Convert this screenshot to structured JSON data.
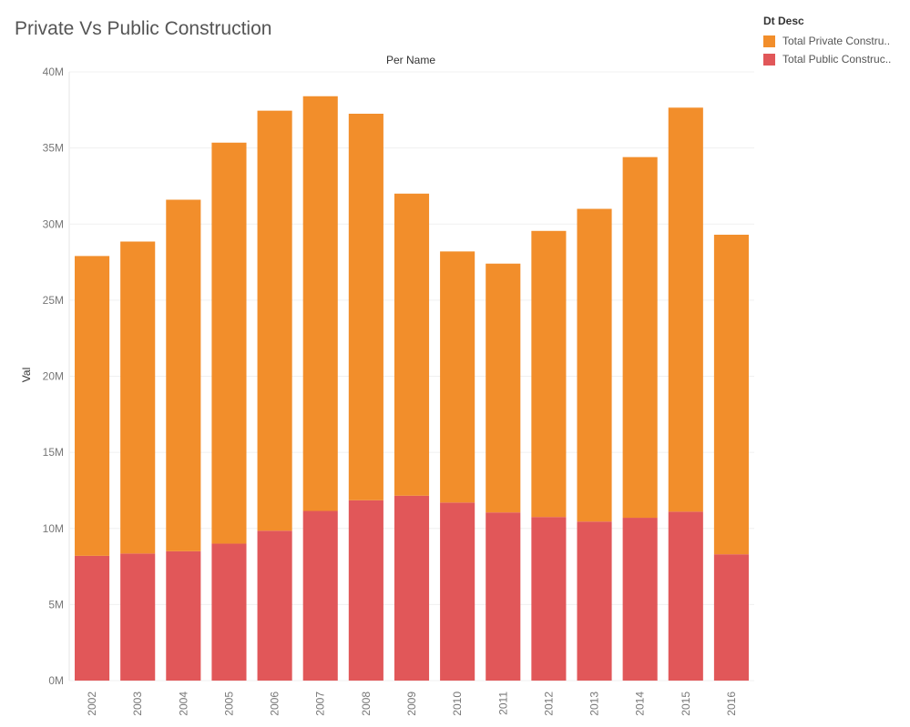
{
  "title": "Private Vs Public Construction",
  "legend": {
    "title": "Dt Desc",
    "items": [
      {
        "label": "Total Private Constru..",
        "color": "#F28E2B"
      },
      {
        "label": "Total Public Construc..",
        "color": "#E15759"
      }
    ]
  },
  "chart_data": {
    "type": "bar",
    "stacked": true,
    "column_header": "Per Name",
    "ylabel": "Val",
    "ylim": [
      0,
      40000000
    ],
    "yticks": [
      {
        "value": 0,
        "label": "0M"
      },
      {
        "value": 5000000,
        "label": "5M"
      },
      {
        "value": 10000000,
        "label": "10M"
      },
      {
        "value": 15000000,
        "label": "15M"
      },
      {
        "value": 20000000,
        "label": "20M"
      },
      {
        "value": 25000000,
        "label": "25M"
      },
      {
        "value": 30000000,
        "label": "30M"
      },
      {
        "value": 35000000,
        "label": "35M"
      },
      {
        "value": 40000000,
        "label": "40M"
      }
    ],
    "categories": [
      "2002",
      "2003",
      "2004",
      "2005",
      "2006",
      "2007",
      "2008",
      "2009",
      "2010",
      "2011",
      "2012",
      "2013",
      "2014",
      "2015",
      "2016"
    ],
    "series": [
      {
        "name": "Total Public Construc..",
        "color": "#E15759",
        "values": [
          8200000,
          8350000,
          8500000,
          9000000,
          9850000,
          11150000,
          11850000,
          12150000,
          11700000,
          11050000,
          10750000,
          10450000,
          10700000,
          11100000,
          8300000
        ]
      },
      {
        "name": "Total Private Constru..",
        "color": "#F28E2B",
        "values": [
          19700000,
          20500000,
          23100000,
          26350000,
          27600000,
          27250000,
          25400000,
          19850000,
          16500000,
          16350000,
          18800000,
          20550000,
          23700000,
          26550000,
          21000000
        ]
      }
    ],
    "grid": true,
    "legend_position": "top-right"
  }
}
